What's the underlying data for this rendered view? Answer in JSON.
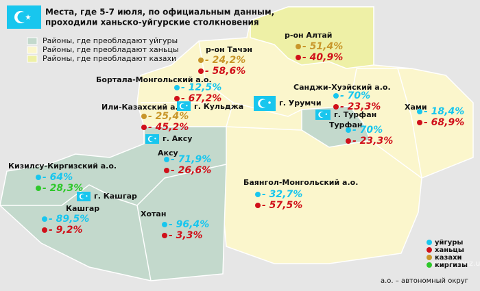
{
  "header": {
    "title_lines": [
      "Места, где 5-7 июля, по официальным данным,",
      "проходили ханьско-уйгурские столкновения"
    ]
  },
  "area_legend": [
    {
      "label": "Районы, где преобладают уйгуры",
      "color": "#c3d9cc"
    },
    {
      "label": "Районы, где преобладают ханьцы",
      "color": "#fbf6cc"
    },
    {
      "label": "Районы, где преобладают казахи",
      "color": "#eef0a6"
    }
  ],
  "regions": [
    {
      "name": "р-он Алтай",
      "stats": [
        {
          "label": "- 51,4%",
          "color": "#c8962a"
        },
        {
          "label": "- 40,9%",
          "color": "#d0101a"
        }
      ]
    },
    {
      "name": "р-он Тачэн",
      "stats": [
        {
          "label": "- 24,2%",
          "color": "#c8962a"
        },
        {
          "label": "- 58,6%",
          "color": "#d0101a"
        }
      ]
    },
    {
      "name": "Бортала-Монгольский а.о.",
      "stats": [
        {
          "label": "- 12,5%",
          "color": "#18c6ee"
        },
        {
          "label": "- 67,2%",
          "color": "#d0101a"
        }
      ]
    },
    {
      "name": "Или-Казахский а.о.",
      "stats": [
        {
          "label": "- 25,4%",
          "color": "#c8962a"
        },
        {
          "label": "- 45,2%",
          "color": "#d0101a"
        }
      ]
    },
    {
      "name": "Санджи-Хуэйский а.о.",
      "stats": [
        {
          "label": "- 70%",
          "color": "#18c6ee"
        },
        {
          "label": "- 23,3%",
          "color": "#d0101a"
        }
      ]
    },
    {
      "name": "Хами",
      "stats": [
        {
          "label": "- 18,4%",
          "color": "#18c6ee"
        },
        {
          "label": "- 68,9%",
          "color": "#d0101a"
        }
      ]
    },
    {
      "name": "Турфан",
      "stats": [
        {
          "label": "- 70%",
          "color": "#18c6ee"
        },
        {
          "label": "- 23,3%",
          "color": "#d0101a"
        }
      ]
    },
    {
      "name": "Аксу",
      "stats": [
        {
          "label": "- 71,9%",
          "color": "#18c6ee"
        },
        {
          "label": "- 26,6%",
          "color": "#d0101a"
        }
      ]
    },
    {
      "name": "Кизилсу-Киргизский а.о.",
      "stats": [
        {
          "label": "- 64%",
          "color": "#18c6ee"
        },
        {
          "label": "- 28,3%",
          "color": "#2ec82a"
        }
      ]
    },
    {
      "name": "Кашгар",
      "stats": [
        {
          "label": "- 89,5%",
          "color": "#18c6ee"
        },
        {
          "label": "- 9,2%",
          "color": "#d0101a"
        }
      ]
    },
    {
      "name": "Хотан",
      "stats": [
        {
          "label": "- 96,4%",
          "color": "#18c6ee"
        },
        {
          "label": "- 3,3%",
          "color": "#d0101a"
        }
      ]
    },
    {
      "name": "Баянгол-Монгольский а.о.",
      "stats": [
        {
          "label": "- 32,7%",
          "color": "#18c6ee"
        },
        {
          "label": "- 57,5%",
          "color": "#d0101a"
        }
      ]
    }
  ],
  "cities": [
    "г. Кульджа",
    "г. Урумчи",
    "г. Турфан",
    "г. Аксу",
    "г. Кашгар"
  ],
  "group_key": [
    {
      "label": "уйгуры",
      "color": "#18c6ee"
    },
    {
      "label": "ханьцы",
      "color": "#d0101a"
    },
    {
      "label": "казахи",
      "color": "#c8962a"
    },
    {
      "label": "киргизы",
      "color": "#2ec82a"
    }
  ],
  "footnote": "а.о. – автономный округ",
  "watermark": "www.umuz.ucoz.ru"
}
